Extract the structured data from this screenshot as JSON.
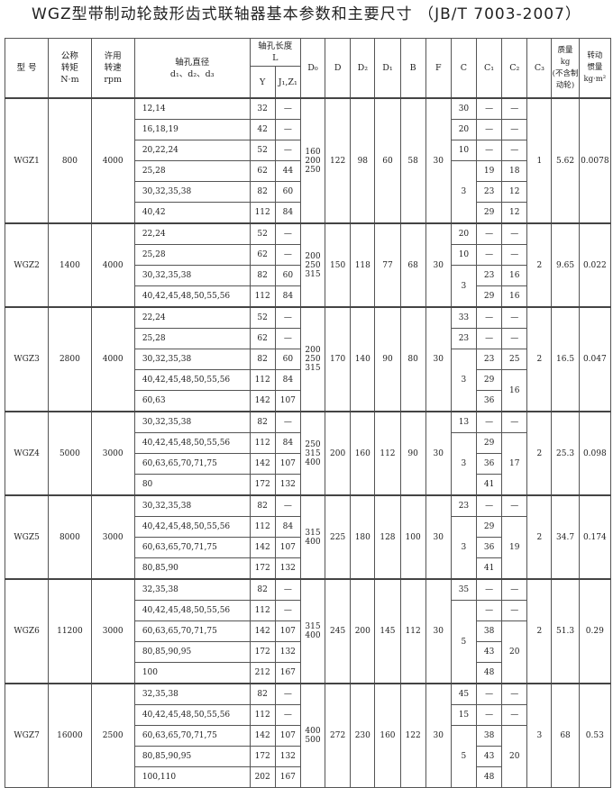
{
  "title": "WGZ型带制动轮鼓形齿式联轴器基本参数和主要尺寸 （JB/T 7003-2007）",
  "headers": {
    "model": "型 号",
    "torque": "公称\n转矩\nN·m",
    "speed": "许用\n转速\nrpm",
    "bore": "轴孔直径\nd₁、d₂、d₃",
    "length": "轴孔长度\nL",
    "Y": "Y",
    "J": "J₁,Z₁",
    "D0": "D₀",
    "D": "D",
    "D2": "D₂",
    "D1": "D₁",
    "B": "B",
    "F": "F",
    "C": "C",
    "C1": "C₁",
    "C2": "C₂",
    "C3": "C₃",
    "mass": "质量\nkg\n(不含制\n动轮)",
    "inertia": "转动\n惯量\nkg·m²"
  },
  "groups": [
    {
      "model": "WGZ1",
      "torque": "800",
      "speed": "4000",
      "D0": "160\n200\n250",
      "D": "122",
      "D2": "98",
      "D1": "60",
      "B": "58",
      "F": "30",
      "C3": "1",
      "mass": "5.62",
      "inertia": "0.0078",
      "rows": [
        [
          "12,14",
          "32",
          "—"
        ],
        [
          "16,18,19",
          "42",
          "—"
        ],
        [
          "20,22,24",
          "52",
          "—"
        ],
        [
          "25,28",
          "62",
          "44"
        ],
        [
          "30,32,35,38",
          "82",
          "60"
        ],
        [
          "40,42",
          "112",
          "84"
        ]
      ],
      "C": [
        [
          "30",
          1
        ],
        [
          "20",
          1
        ],
        [
          "10",
          1
        ],
        [
          "3",
          3
        ]
      ],
      "C1": [
        [
          "—",
          1
        ],
        [
          "—",
          1
        ],
        [
          "—",
          1
        ],
        [
          "19",
          1
        ],
        [
          "23",
          1
        ],
        [
          "29",
          1
        ]
      ],
      "C2": [
        [
          "—",
          1
        ],
        [
          "—",
          1
        ],
        [
          "—",
          1
        ],
        [
          "18",
          1
        ],
        [
          "12",
          1
        ],
        [
          "12",
          1
        ]
      ]
    },
    {
      "model": "WGZ2",
      "torque": "1400",
      "speed": "4000",
      "D0": "200\n250\n315",
      "D": "150",
      "D2": "118",
      "D1": "77",
      "B": "68",
      "F": "30",
      "C3": "2",
      "mass": "9.65",
      "inertia": "0.022",
      "rows": [
        [
          "22,24",
          "52",
          "—"
        ],
        [
          "25,28",
          "62",
          "—"
        ],
        [
          "30,32,35,38",
          "82",
          "60"
        ],
        [
          "40,42,45,48,50,55,56",
          "112",
          "84"
        ]
      ],
      "C": [
        [
          "20",
          1
        ],
        [
          "10",
          1
        ],
        [
          "3",
          2
        ]
      ],
      "C1": [
        [
          "—",
          1
        ],
        [
          "—",
          1
        ],
        [
          "23",
          1
        ],
        [
          "29",
          1
        ]
      ],
      "C2": [
        [
          "—",
          1
        ],
        [
          "—",
          1
        ],
        [
          "16",
          1
        ],
        [
          "16",
          1
        ]
      ]
    },
    {
      "model": "WGZ3",
      "torque": "2800",
      "speed": "4000",
      "D0": "200\n250\n315",
      "D": "170",
      "D2": "140",
      "D1": "90",
      "B": "80",
      "F": "30",
      "C3": "2",
      "mass": "16.5",
      "inertia": "0.047",
      "rows": [
        [
          "22,24",
          "52",
          "—"
        ],
        [
          "25,28",
          "62",
          "—"
        ],
        [
          "30,32,35,38",
          "82",
          "60"
        ],
        [
          "40,42,45,48,50,55,56",
          "112",
          "84"
        ],
        [
          "60,63",
          "142",
          "107"
        ]
      ],
      "C": [
        [
          "33",
          1
        ],
        [
          "23",
          1
        ],
        [
          "3",
          3
        ]
      ],
      "C1": [
        [
          "—",
          1
        ],
        [
          "—",
          1
        ],
        [
          "23",
          1
        ],
        [
          "29",
          1
        ],
        [
          "36",
          1
        ]
      ],
      "C2": [
        [
          "—",
          1
        ],
        [
          "—",
          1
        ],
        [
          "25",
          1
        ],
        [
          "16",
          2
        ]
      ]
    },
    {
      "model": "WGZ4",
      "torque": "5000",
      "speed": "3000",
      "D0": "250\n315\n400",
      "D": "200",
      "D2": "160",
      "D1": "112",
      "B": "90",
      "F": "30",
      "C3": "2",
      "mass": "25.3",
      "inertia": "0.098",
      "rows": [
        [
          "30,32,35,38",
          "82",
          "—"
        ],
        [
          "40,42,45,48,50,55,56",
          "112",
          "84"
        ],
        [
          "60,63,65,70,71,75",
          "142",
          "107"
        ],
        [
          "80",
          "172",
          "132"
        ]
      ],
      "C": [
        [
          "13",
          1
        ],
        [
          "3",
          3
        ]
      ],
      "C1": [
        [
          "—",
          1
        ],
        [
          "29",
          1
        ],
        [
          "36",
          1
        ],
        [
          "41",
          1
        ]
      ],
      "C2": [
        [
          "—",
          1
        ],
        [
          "17",
          3
        ]
      ]
    },
    {
      "model": "WGZ5",
      "torque": "8000",
      "speed": "3000",
      "D0": "315\n400",
      "D": "225",
      "D2": "180",
      "D1": "128",
      "B": "100",
      "F": "30",
      "C3": "2",
      "mass": "34.7",
      "inertia": "0.174",
      "rows": [
        [
          "30,32,35,38",
          "82",
          "—"
        ],
        [
          "40,42,45,48,50,55,56",
          "112",
          "84"
        ],
        [
          "60,63,65,70,71,75",
          "142",
          "107"
        ],
        [
          "80,85,90",
          "172",
          "132"
        ]
      ],
      "C": [
        [
          "23",
          1
        ],
        [
          "3",
          3
        ]
      ],
      "C1": [
        [
          "—",
          1
        ],
        [
          "29",
          1
        ],
        [
          "36",
          1
        ],
        [
          "41",
          1
        ]
      ],
      "C2": [
        [
          "—",
          1
        ],
        [
          "19",
          3
        ]
      ]
    },
    {
      "model": "WGZ6",
      "torque": "11200",
      "speed": "3000",
      "D0": "315\n400",
      "D": "245",
      "D2": "200",
      "D1": "145",
      "B": "112",
      "F": "30",
      "C3": "2",
      "mass": "51.3",
      "inertia": "0.29",
      "rows": [
        [
          "32,35,38",
          "82",
          "—"
        ],
        [
          "40,42,45,48,50,55,56",
          "112",
          "—"
        ],
        [
          "60,63,65,70,71,75",
          "142",
          "107"
        ],
        [
          "80,85,90,95",
          "172",
          "132"
        ],
        [
          "100",
          "212",
          "167"
        ]
      ],
      "C": [
        [
          "35",
          1
        ],
        [
          "5",
          4
        ]
      ],
      "C1": [
        [
          "—",
          1
        ],
        [
          "—",
          1
        ],
        [
          "38",
          1
        ],
        [
          "43",
          1
        ],
        [
          "48",
          1
        ]
      ],
      "C2": [
        [
          "—",
          1
        ],
        [
          "—",
          1
        ],
        [
          "20",
          3
        ]
      ]
    },
    {
      "model": "WGZ7",
      "torque": "16000",
      "speed": "2500",
      "D0": "400\n500",
      "D": "272",
      "D2": "230",
      "D1": "160",
      "B": "122",
      "F": "30",
      "C3": "3",
      "mass": "68",
      "inertia": "0.53",
      "rows": [
        [
          "32,35,38",
          "82",
          "—"
        ],
        [
          "40,42,45,48,50,55,56",
          "112",
          "—"
        ],
        [
          "60,63,65,70,71,75",
          "142",
          "107"
        ],
        [
          "80,85,90,95",
          "172",
          "132"
        ],
        [
          "100,110",
          "202",
          "167"
        ]
      ],
      "C": [
        [
          "45",
          1
        ],
        [
          "15",
          1
        ],
        [
          "5",
          3
        ]
      ],
      "C1": [
        [
          "—",
          1
        ],
        [
          "—",
          1
        ],
        [
          "38",
          1
        ],
        [
          "43",
          1
        ],
        [
          "48",
          1
        ]
      ],
      "C2": [
        [
          "—",
          1
        ],
        [
          "—",
          1
        ],
        [
          "20",
          3
        ]
      ]
    }
  ]
}
